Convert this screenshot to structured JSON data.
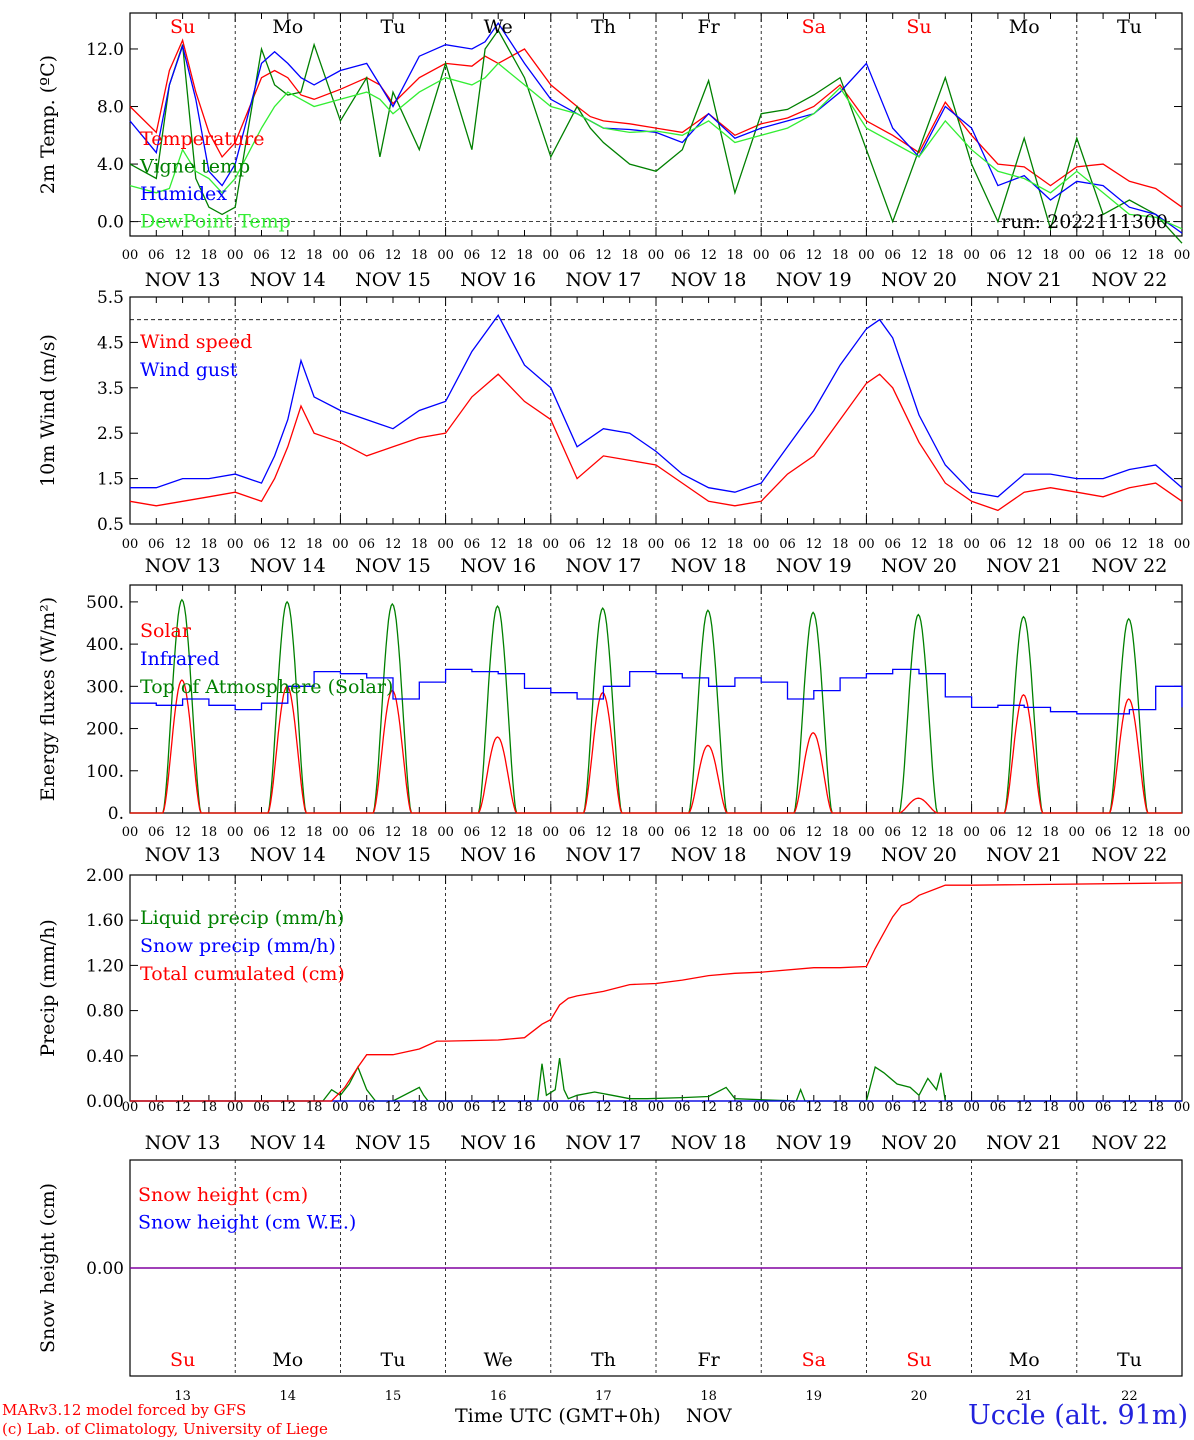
{
  "footer": {
    "model": "MARv3.12 model forced by GFS",
    "credit": "(c) Lab. of Climatology, University of Liege",
    "xlabel": "Time UTC (GMT+0h)",
    "month": "NOV",
    "station": "Uccle (alt. 91m)"
  },
  "colors": {
    "red": "#ff0000",
    "blue": "#0000ff",
    "green": "#008000",
    "lightgreen": "#33ee33",
    "weekend": "#ff0000",
    "weekday": "#000000",
    "snowline": "#8000a0"
  },
  "chart_data": [
    {
      "id": "temperature",
      "type": "line",
      "ylabel": "2m Temp. (ºC)",
      "ylim": [
        -1.0,
        14.5
      ],
      "yticks": [
        "0.0",
        "4.0",
        "8.0",
        "12.0"
      ],
      "ytick_values": [
        0,
        4,
        8,
        12
      ],
      "dashed_refs": [
        0
      ],
      "annotation": "run: 2022111300",
      "day_names_top": [
        "Su",
        "Mo",
        "Tu",
        "We",
        "Th",
        "Fr",
        "Sa",
        "Su",
        "Mo",
        "Tu"
      ],
      "x_unit": "hours since Nov 13 00 UTC",
      "x": [
        0,
        6,
        9,
        12,
        15,
        18,
        21,
        24,
        30,
        33,
        36,
        39,
        42,
        48,
        54,
        57,
        60,
        66,
        72,
        78,
        81,
        84,
        90,
        96,
        102,
        105,
        108,
        114,
        120,
        126,
        132,
        138,
        144,
        150,
        156,
        162,
        168,
        174,
        180,
        186,
        192,
        198,
        204,
        210,
        216,
        222,
        228,
        234,
        240
      ],
      "series": [
        {
          "name": "Temperature",
          "color": "#ff0000",
          "values": [
            8.0,
            6.2,
            10.5,
            12.6,
            9.0,
            6.2,
            4.5,
            5.5,
            10.0,
            10.5,
            10.0,
            8.8,
            8.5,
            9.2,
            10.0,
            9.5,
            8.2,
            10.0,
            11.0,
            10.8,
            11.5,
            11.0,
            12.0,
            9.5,
            8.0,
            7.3,
            7.0,
            6.8,
            6.5,
            6.2,
            7.5,
            6.0,
            6.8,
            7.2,
            8.0,
            9.5,
            7.0,
            6.0,
            4.8,
            8.3,
            6.0,
            4.0,
            3.8,
            2.5,
            3.8,
            4.0,
            2.8,
            2.3,
            1.0
          ]
        },
        {
          "name": "Vigne temp",
          "color": "#008000",
          "values": [
            4.0,
            3.0,
            9.5,
            12.3,
            3.0,
            1.0,
            0.5,
            1.0,
            12.0,
            9.5,
            8.8,
            9.0,
            12.3,
            7.0,
            10.0,
            4.5,
            9.0,
            5.0,
            11.0,
            5.0,
            12.0,
            13.3,
            10.0,
            4.5,
            8.0,
            6.5,
            5.5,
            4.0,
            3.5,
            5.0,
            9.8,
            2.0,
            7.5,
            7.8,
            8.8,
            10.0,
            5.0,
            0.0,
            5.0,
            10.0,
            4.0,
            0.0,
            5.8,
            -0.5,
            5.8,
            0.5,
            1.5,
            0.5,
            -1.5
          ]
        },
        {
          "name": "Humidex",
          "color": "#0000ff",
          "values": [
            7.0,
            4.8,
            9.5,
            12.2,
            8.5,
            3.5,
            2.5,
            4.0,
            11.0,
            11.8,
            11.0,
            10.0,
            9.5,
            10.5,
            11.0,
            9.5,
            8.0,
            11.5,
            12.3,
            12.0,
            12.5,
            13.8,
            11.0,
            8.5,
            7.5,
            7.0,
            6.5,
            6.4,
            6.2,
            5.5,
            7.5,
            5.8,
            6.5,
            7.0,
            7.5,
            9.0,
            11.0,
            6.5,
            4.5,
            8.0,
            6.5,
            2.5,
            3.2,
            1.5,
            2.8,
            2.5,
            1.0,
            0.5,
            -0.8
          ]
        },
        {
          "name": "DewPoint Temp",
          "color": "#33ee33",
          "values": [
            2.5,
            2.0,
            2.3,
            5.0,
            3.5,
            3.0,
            2.0,
            3.0,
            6.5,
            8.0,
            9.0,
            8.5,
            8.0,
            8.5,
            9.0,
            8.5,
            7.5,
            9.0,
            10.0,
            9.5,
            10.0,
            11.0,
            9.5,
            8.0,
            7.5,
            7.0,
            6.5,
            6.2,
            6.3,
            6.0,
            7.0,
            5.5,
            6.0,
            6.5,
            7.5,
            9.3,
            6.5,
            5.5,
            4.5,
            7.0,
            5.0,
            3.5,
            3.0,
            2.0,
            3.5,
            2.0,
            0.5,
            0.3,
            -0.5
          ]
        }
      ]
    },
    {
      "id": "wind",
      "type": "line",
      "ylabel": "10m Wind (m/s)",
      "ylim": [
        0.5,
        5.5
      ],
      "yticks": [
        "0.5",
        "1.5",
        "2.5",
        "3.5",
        "4.5",
        "5.5"
      ],
      "ytick_values": [
        0.5,
        1.5,
        2.5,
        3.5,
        4.5,
        5.5
      ],
      "dashed_refs": [
        5.0
      ],
      "x_unit": "hours since Nov 13 00 UTC",
      "x": [
        0,
        6,
        12,
        18,
        24,
        30,
        33,
        36,
        39,
        42,
        48,
        54,
        60,
        66,
        72,
        78,
        84,
        90,
        96,
        102,
        108,
        114,
        120,
        126,
        132,
        138,
        144,
        150,
        156,
        162,
        168,
        171,
        174,
        180,
        186,
        192,
        198,
        204,
        210,
        216,
        222,
        228,
        234,
        240
      ],
      "series": [
        {
          "name": "Wind speed",
          "color": "#ff0000",
          "values": [
            1.0,
            0.9,
            1.0,
            1.1,
            1.2,
            1.0,
            1.5,
            2.2,
            3.1,
            2.5,
            2.3,
            2.0,
            2.2,
            2.4,
            2.5,
            3.3,
            3.8,
            3.2,
            2.8,
            1.5,
            2.0,
            1.9,
            1.8,
            1.4,
            1.0,
            0.9,
            1.0,
            1.6,
            2.0,
            2.8,
            3.6,
            3.8,
            3.5,
            2.3,
            1.4,
            1.0,
            0.8,
            1.2,
            1.3,
            1.2,
            1.1,
            1.3,
            1.4,
            1.0
          ]
        },
        {
          "name": "Wind gust",
          "color": "#0000ff",
          "values": [
            1.3,
            1.3,
            1.5,
            1.5,
            1.6,
            1.4,
            2.0,
            2.8,
            4.1,
            3.3,
            3.0,
            2.8,
            2.6,
            3.0,
            3.2,
            4.3,
            5.1,
            4.0,
            3.5,
            2.2,
            2.6,
            2.5,
            2.1,
            1.6,
            1.3,
            1.2,
            1.4,
            2.2,
            3.0,
            4.0,
            4.8,
            5.0,
            4.6,
            2.9,
            1.8,
            1.2,
            1.1,
            1.6,
            1.6,
            1.5,
            1.5,
            1.7,
            1.8,
            1.3
          ]
        }
      ]
    },
    {
      "id": "fluxes",
      "type": "line",
      "ylabel": "Energy fluxes (W/m²)",
      "ylim": [
        0,
        540
      ],
      "yticks": [
        "0.",
        "100.",
        "200.",
        "300.",
        "400.",
        "500."
      ],
      "ytick_values": [
        0,
        100,
        200,
        300,
        400,
        500
      ],
      "x_unit": "hours since Nov 13 00 UTC",
      "solar_window_hours": [
        7.5,
        16.2
      ],
      "series": [
        {
          "name": "Solar",
          "color": "#ff0000",
          "daily_peak": [
            315,
            300,
            290,
            180,
            285,
            160,
            190,
            35,
            280,
            270
          ]
        },
        {
          "name": "Infrared",
          "color": "#0000ff",
          "x": [
            0,
            6,
            12,
            18,
            24,
            30,
            36,
            42,
            48,
            54,
            60,
            66,
            72,
            78,
            84,
            90,
            96,
            102,
            108,
            114,
            120,
            126,
            132,
            138,
            144,
            150,
            156,
            162,
            168,
            174,
            180,
            186,
            192,
            198,
            204,
            210,
            216,
            222,
            228,
            234,
            240
          ],
          "values": [
            260,
            255,
            270,
            255,
            245,
            260,
            300,
            335,
            330,
            320,
            270,
            310,
            340,
            335,
            330,
            295,
            285,
            270,
            300,
            335,
            330,
            320,
            300,
            320,
            310,
            270,
            290,
            320,
            330,
            340,
            330,
            275,
            250,
            255,
            250,
            240,
            235,
            235,
            245,
            300,
            250
          ]
        },
        {
          "name": "Top of Atmosphere (Solar)",
          "color": "#008000",
          "daily_peak": [
            505,
            500,
            495,
            490,
            485,
            480,
            475,
            470,
            465,
            460
          ]
        }
      ]
    },
    {
      "id": "precip",
      "type": "line",
      "ylabel": "Precip (mm/h)",
      "ylim": [
        0,
        2.0
      ],
      "yticks": [
        "0.00",
        "0.40",
        "0.80",
        "1.20",
        "1.60",
        "2.00"
      ],
      "ytick_values": [
        0,
        0.4,
        0.8,
        1.2,
        1.6,
        2.0
      ],
      "x_unit": "hours since Nov 13 00 UTC",
      "series": [
        {
          "name": "Liquid precip (mm/h)",
          "color": "#008000",
          "x": [
            0,
            44,
            46,
            48,
            50,
            52,
            54,
            56,
            60,
            66,
            67,
            68,
            70,
            84,
            93,
            94,
            95,
            97,
            98,
            99,
            100,
            102,
            106,
            110,
            114,
            118,
            126,
            132,
            136,
            138,
            152,
            153,
            154,
            168,
            170,
            172,
            175,
            178,
            180,
            182,
            184,
            185,
            186,
            188,
            240
          ],
          "values": [
            0,
            0,
            0.1,
            0.05,
            0.15,
            0.3,
            0.1,
            0.0,
            0.0,
            0.12,
            0.05,
            0.0,
            0.0,
            0.0,
            0.0,
            0.33,
            0.05,
            0.1,
            0.38,
            0.1,
            0.02,
            0.05,
            0.08,
            0.05,
            0.02,
            0.02,
            0.03,
            0.04,
            0.12,
            0.02,
            0.0,
            0.1,
            0.0,
            0.0,
            0.3,
            0.25,
            0.15,
            0.12,
            0.05,
            0.2,
            0.1,
            0.25,
            0.0,
            0.0,
            0.0
          ]
        },
        {
          "name": "Snow precip (mm/h)",
          "color": "#0000ff",
          "x": [
            0,
            240
          ],
          "values": [
            0,
            0
          ]
        },
        {
          "name": "Total cumulated (cm)",
          "color": "#ff0000",
          "x": [
            0,
            46,
            49,
            52,
            54,
            60,
            66,
            70,
            72,
            84,
            90,
            94,
            96,
            98,
            100,
            102,
            108,
            114,
            120,
            126,
            132,
            138,
            144,
            156,
            162,
            168,
            170,
            174,
            176,
            178,
            180,
            186,
            192,
            240
          ],
          "values": [
            0,
            0,
            0.12,
            0.3,
            0.41,
            0.41,
            0.46,
            0.53,
            0.53,
            0.54,
            0.56,
            0.68,
            0.72,
            0.85,
            0.91,
            0.93,
            0.97,
            1.03,
            1.04,
            1.07,
            1.11,
            1.13,
            1.14,
            1.18,
            1.18,
            1.19,
            1.35,
            1.63,
            1.73,
            1.76,
            1.82,
            1.91,
            1.91,
            1.93
          ]
        }
      ]
    },
    {
      "id": "snow",
      "type": "line",
      "ylabel": "Snow height (cm)",
      "ylim": [
        -1,
        1
      ],
      "yticks": [
        "0.00"
      ],
      "ytick_values": [
        0
      ],
      "x_unit": "hours since Nov 13 00 UTC",
      "series": [
        {
          "name": "Snow height (cm)",
          "color": "#ff0000",
          "x": [
            0,
            240
          ],
          "values": [
            0,
            0
          ]
        },
        {
          "name": "Snow height (cm W.E.)",
          "color": "#0000ff",
          "x": [
            0,
            240
          ],
          "values": [
            0,
            0
          ]
        }
      ]
    }
  ],
  "x_axis": {
    "hour_labels": [
      "00",
      "06",
      "12",
      "18"
    ],
    "last_hour_label": "00",
    "date_labels": [
      "NOV 13",
      "NOV 14",
      "NOV 15",
      "NOV 16",
      "NOV 17",
      "NOV 18",
      "NOV 19",
      "NOV 20",
      "NOV 21",
      "NOV 22"
    ],
    "day_names_bottom": [
      "Su",
      "Mo",
      "Tu",
      "We",
      "Th",
      "Fr",
      "Sa",
      "Su",
      "Mo",
      "Tu"
    ],
    "day_numbers_bottom": [
      "13",
      "14",
      "15",
      "16",
      "17",
      "18",
      "19",
      "20",
      "21",
      "22"
    ],
    "weekend_days": [
      0,
      6,
      7
    ]
  }
}
